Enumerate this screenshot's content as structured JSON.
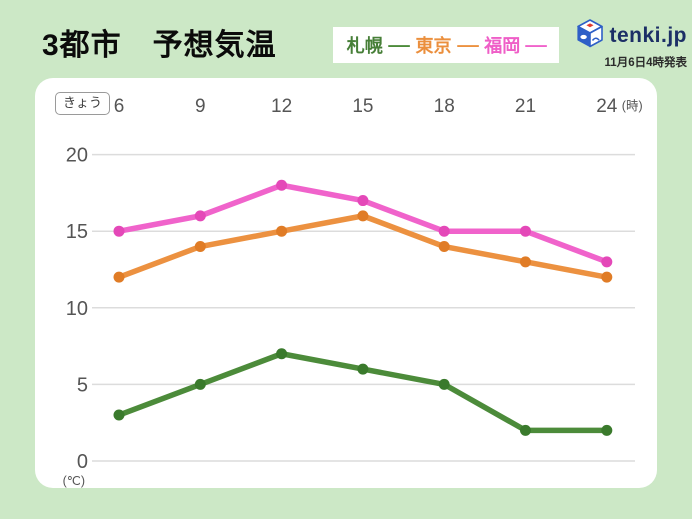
{
  "header": {
    "title": "3都市　予想気温",
    "brand_text": "tenki.jp",
    "published": "11月6日4時発表"
  },
  "legend": {
    "dash_glyph": "—"
  },
  "chart": {
    "today_badge": "きょう"
  },
  "colors": {
    "background": "#cce8c6",
    "panel": "#ffffff",
    "gridline": "#dcdcdc",
    "axis_text": "#555555",
    "brand_navy": "#1c2f66",
    "logo_blue": "#2e5fc7",
    "logo_red": "#e23b2e"
  },
  "chart_data": {
    "type": "line",
    "x": [
      6,
      9,
      12,
      15,
      18,
      21,
      24
    ],
    "xlabel": "(時)",
    "ylabel": "(℃)",
    "ylim": [
      0,
      20
    ],
    "yticks": [
      0,
      5,
      10,
      15,
      20
    ],
    "grid": true,
    "legend_position": "top",
    "series": [
      {
        "name": "札幌",
        "values": [
          3,
          5,
          7,
          6,
          5,
          2,
          2
        ],
        "color": "#4c8b3a",
        "marker_color": "#3a7a2c",
        "text_color": "#477f38"
      },
      {
        "name": "東京",
        "values": [
          12,
          14,
          15,
          16,
          14,
          13,
          12
        ],
        "color": "#ec9140",
        "marker_color": "#e07c26",
        "text_color": "#eb8f3d"
      },
      {
        "name": "福岡",
        "values": [
          15,
          16,
          18,
          17,
          15,
          15,
          13
        ],
        "color": "#f063cb",
        "marker_color": "#e448b8",
        "text_color": "#ef5ec7"
      }
    ]
  }
}
